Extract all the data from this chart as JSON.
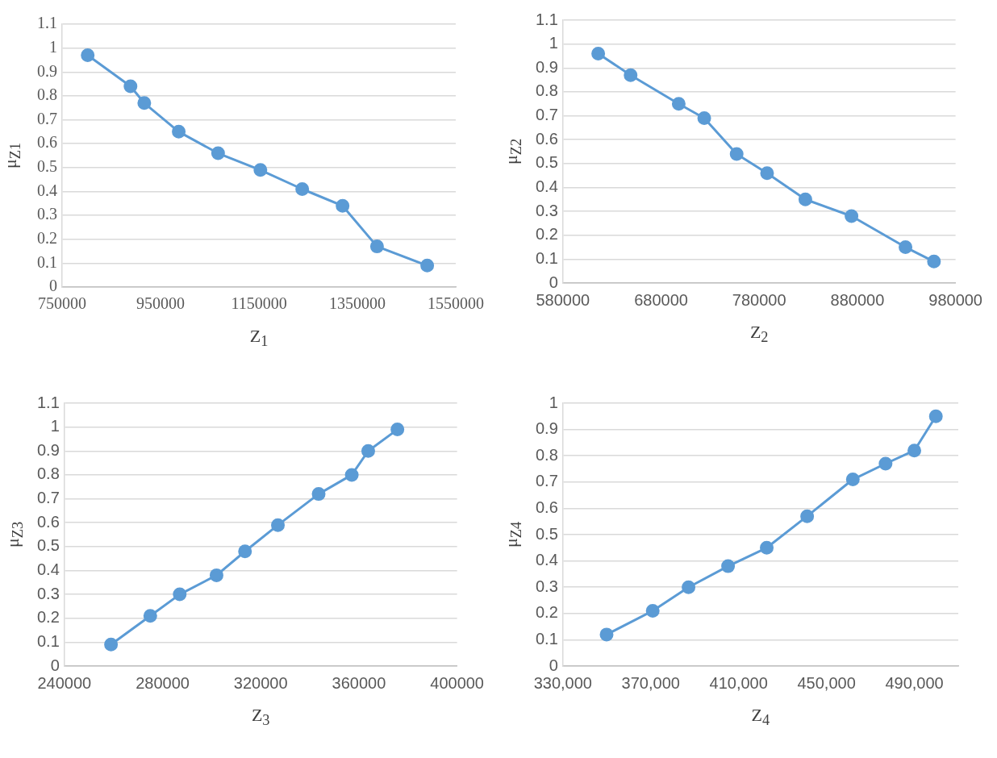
{
  "chart_data": [
    {
      "type": "line",
      "xlabel": "Z$_{1}$",
      "ylabel": "μ$_{Z1}$",
      "x": [
        802000,
        889000,
        917000,
        987000,
        1067000,
        1153000,
        1238000,
        1320000,
        1390000,
        1492000
      ],
      "series": [
        {
          "color": "#5b9bd5",
          "values": [
            0.97,
            0.84,
            0.77,
            0.65,
            0.56,
            0.49,
            0.41,
            0.34,
            0.17,
            0.09
          ]
        }
      ],
      "xlim": [
        750000,
        1550000
      ],
      "xticks": [
        750000,
        950000,
        1150000,
        1350000,
        1550000
      ],
      "ylim": [
        0,
        1.1
      ],
      "yticks": [
        0,
        0.1,
        0.2,
        0.3,
        0.4,
        0.5,
        0.6,
        0.7,
        0.8,
        0.9,
        1,
        1.1
      ],
      "grid": "y",
      "legend": false,
      "marker": "circle",
      "line_style": "solid"
    },
    {
      "type": "line",
      "xlabel": "Z$_{2}$",
      "ylabel": "μ$_{Z2}$",
      "x": [
        616000,
        649000,
        698000,
        724000,
        757000,
        788000,
        827000,
        874000,
        929000,
        958000
      ],
      "series": [
        {
          "color": "#5b9bd5",
          "values": [
            0.96,
            0.87,
            0.75,
            0.69,
            0.54,
            0.46,
            0.35,
            0.28,
            0.15,
            0.09
          ]
        }
      ],
      "xlim": [
        580000,
        980000
      ],
      "xticks": [
        580000,
        680000,
        780000,
        880000,
        980000
      ],
      "ylim": [
        0,
        1.1
      ],
      "yticks": [
        0,
        0.1,
        0.2,
        0.3,
        0.4,
        0.5,
        0.6,
        0.7,
        0.8,
        0.9,
        1,
        1.1
      ],
      "grid": "y",
      "legend": false,
      "marker": "circle",
      "line_style": "solid"
    },
    {
      "type": "line",
      "xlabel": "Z$_{3}$",
      "ylabel": "μ$_{Z3}$",
      "x": [
        259000,
        275000,
        287000,
        302000,
        313600,
        327000,
        343600,
        357100,
        363800,
        375700
      ],
      "series": [
        {
          "color": "#5b9bd5",
          "values": [
            0.09,
            0.21,
            0.3,
            0.38,
            0.48,
            0.59,
            0.72,
            0.8,
            0.9,
            0.99
          ]
        }
      ],
      "xlim": [
        240000,
        400000
      ],
      "xticks": [
        240000,
        280000,
        320000,
        360000,
        400000
      ],
      "ylim": [
        0,
        1.1
      ],
      "yticks": [
        0,
        0.1,
        0.2,
        0.3,
        0.4,
        0.5,
        0.6,
        0.7,
        0.8,
        0.9,
        1,
        1.1
      ],
      "grid": "y",
      "legend": false,
      "marker": "circle",
      "line_style": "solid"
    },
    {
      "type": "line",
      "xlabel": "Z$_{4}$",
      "ylabel": "μ$_{Z4}$",
      "x": [
        349900,
        370900,
        387200,
        405200,
        422800,
        441200,
        462000,
        476900,
        490000,
        499800
      ],
      "series": [
        {
          "color": "#5b9bd5",
          "values": [
            0.12,
            0.21,
            0.3,
            0.38,
            0.45,
            0.57,
            0.71,
            0.77,
            0.82,
            0.95
          ]
        }
      ],
      "xlim": [
        330000,
        510000
      ],
      "xticks": [
        {
          "value": 330000,
          "label": "330,000"
        },
        {
          "value": 370000,
          "label": "370,000"
        },
        {
          "value": 410000,
          "label": "410,000"
        },
        {
          "value": 450000,
          "label": "450,000"
        },
        {
          "value": 490000,
          "label": "490,000"
        }
      ],
      "ylim": [
        0,
        1
      ],
      "yticks": [
        0,
        0.1,
        0.2,
        0.3,
        0.4,
        0.5,
        0.6,
        0.7,
        0.8,
        0.9,
        1
      ],
      "grid": "y",
      "legend": false,
      "marker": "circle",
      "line_style": "solid"
    }
  ]
}
